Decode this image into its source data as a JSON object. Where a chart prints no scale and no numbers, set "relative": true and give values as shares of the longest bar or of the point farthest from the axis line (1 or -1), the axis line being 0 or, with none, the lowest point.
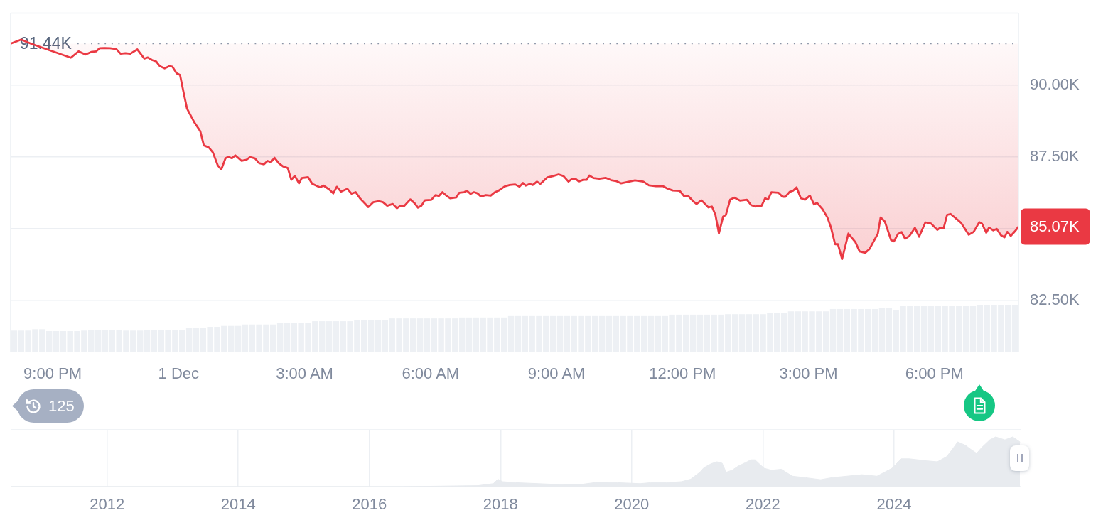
{
  "chart_data": [
    {
      "type": "line",
      "x": [
        "--11-30T20:00",
        "--11-30T20:15",
        "--11-30T20:29",
        "--11-30T20:52",
        "--11-30T21:26",
        "--11-30T21:37",
        "--11-30T21:47",
        "--11-30T21:55",
        "--11-30T22:02",
        "--11-30T22:07",
        "--11-30T22:14",
        "--11-30T22:22",
        "--11-30T22:31",
        "--11-30T22:37",
        "--11-30T22:44",
        "--11-30T22:51",
        "--11-30T23:01",
        "--11-30T23:11",
        "--11-30T23:16",
        "--11-30T23:22",
        "--11-30T23:28",
        "--11-30T23:33",
        "--11-30T23:40",
        "--11-30T23:47",
        "--11-30T23:51",
        "--11-30T23:57",
        "--12-01T00:02",
        "--12-01T00:07",
        "--12-01T00:12",
        "--12-01T00:22",
        "--12-01T00:31",
        "--12-01T00:36",
        "--12-01T00:43",
        "--12-01T00:49",
        "--12-01T00:56",
        "--12-01T01:01",
        "--12-01T01:07",
        "--12-01T01:11",
        "--12-01T01:16",
        "--12-01T01:21",
        "--12-01T01:30",
        "--12-01T01:37",
        "--12-01T01:42",
        "--12-01T01:49",
        "--12-01T01:55",
        "--12-01T02:02",
        "--12-01T02:07",
        "--12-01T02:12",
        "--12-01T02:17",
        "--12-01T02:23",
        "--12-01T02:29",
        "--12-01T02:36",
        "--12-01T02:41",
        "--12-01T02:46",
        "--12-01T02:52",
        "--12-01T02:56",
        "--12-01T03:05",
        "--12-01T03:11",
        "--12-01T03:22",
        "--12-01T03:27",
        "--12-01T03:35",
        "--12-01T03:41",
        "--12-01T03:46",
        "--12-01T03:52",
        "--12-01T04:01",
        "--12-01T04:07",
        "--12-01T04:13",
        "--12-01T04:19",
        "--12-01T04:31",
        "--12-01T04:38",
        "--12-01T04:46",
        "--12-01T04:52",
        "--12-01T04:58",
        "--12-01T05:06",
        "--12-01T05:12",
        "--12-01T05:17",
        "--12-01T05:22",
        "--12-01T05:31",
        "--12-01T05:37",
        "--12-01T05:42",
        "--12-01T05:47",
        "--12-01T05:52",
        "--12-01T06:01",
        "--12-01T06:07",
        "--12-01T06:12",
        "--12-01T06:17",
        "--12-01T06:23",
        "--12-01T06:28",
        "--12-01T06:37",
        "--12-01T06:41",
        "--12-01T06:48",
        "--12-01T06:52",
        "--12-01T06:57",
        "--12-01T07:02",
        "--12-01T07:07",
        "--12-01T07:12",
        "--12-01T07:19",
        "--12-01T07:26",
        "--12-01T07:32",
        "--12-01T07:37",
        "--12-01T07:46",
        "--12-01T07:53",
        "--12-01T08:01",
        "--12-01T08:07",
        "--12-01T08:12",
        "--12-01T08:16",
        "--12-01T08:22",
        "--12-01T08:26",
        "--12-01T08:32",
        "--12-01T08:37",
        "--12-01T08:47",
        "--12-01T08:55",
        "--12-01T09:03",
        "--12-01T09:10",
        "--12-01T09:17",
        "--12-01T09:22",
        "--12-01T09:28",
        "--12-01T09:32",
        "--12-01T09:38",
        "--12-01T09:43",
        "--12-01T09:47",
        "--12-01T09:53",
        "--12-01T10:01",
        "--12-01T10:10",
        "--12-01T10:18",
        "--12-01T10:25",
        "--12-01T10:32",
        "--12-01T10:44",
        "--12-01T10:52",
        "--12-01T11:04",
        "--12-01T11:12",
        "--12-01T11:22",
        "--12-01T11:32",
        "--12-01T11:38",
        "--12-01T11:46",
        "--12-01T11:56",
        "--12-01T12:02",
        "--12-01T12:08",
        "--12-01T12:15",
        "--12-01T12:20",
        "--12-01T12:27",
        "--12-01T12:37",
        "--12-01T12:42",
        "--12-01T12:47",
        "--12-01T12:52",
        "--12-01T12:58",
        "--12-01T13:02",
        "--12-01T13:08",
        "--12-01T13:14",
        "--12-01T13:22",
        "--12-01T13:32",
        "--12-01T13:38",
        "--12-01T13:44",
        "--12-01T13:53",
        "--12-01T13:58",
        "--12-01T14:02",
        "--12-01T14:07",
        "--12-01T14:17",
        "--12-01T14:23",
        "--12-01T14:27",
        "--12-01T14:33",
        "--12-01T14:38",
        "--12-01T14:43",
        "--12-01T14:49",
        "--12-01T14:55",
        "--12-01T15:02",
        "--12-01T15:08",
        "--12-01T15:12",
        "--12-01T15:20",
        "--12-01T15:27",
        "--12-01T15:32",
        "--12-01T15:38",
        "--12-01T15:42",
        "--12-01T15:48",
        "--12-01T15:57",
        "--12-01T16:07",
        "--12-01T16:13",
        "--12-01T16:21",
        "--12-01T16:27",
        "--12-01T16:39",
        "--12-01T16:43",
        "--12-01T16:49",
        "--12-01T16:58",
        "--12-01T17:02",
        "--12-01T17:08",
        "--12-01T17:13",
        "--12-01T17:18",
        "--12-01T17:24",
        "--12-01T17:32",
        "--12-01T17:38",
        "--12-01T17:47",
        "--12-01T17:55",
        "--12-01T18:04",
        "--12-01T18:08",
        "--12-01T18:13",
        "--12-01T18:18",
        "--12-01T18:23",
        "--12-01T18:33",
        "--12-01T18:38",
        "--12-01T18:49",
        "--12-01T18:56",
        "--12-01T19:04",
        "--12-01T19:08",
        "--12-01T19:14",
        "--12-01T19:18",
        "--12-01T19:24",
        "--12-01T19:29",
        "--12-01T19:35",
        "--12-01T19:40",
        "--12-01T19:44",
        "--12-01T19:49",
        "--12-01T19:55",
        "--12-01T20:00"
      ],
      "series": [
        {
          "color": "#ea3943",
          "values": [
            91440,
            91580,
            91440,
            91240,
            90950,
            91170,
            91060,
            91150,
            91170,
            91280,
            91290,
            91280,
            91250,
            91090,
            91110,
            91090,
            91240,
            90920,
            90960,
            90870,
            90820,
            90660,
            90580,
            90660,
            90640,
            90410,
            90350,
            89750,
            89180,
            88720,
            88390,
            87900,
            87830,
            87650,
            87200,
            87060,
            87450,
            87500,
            87450,
            87550,
            87360,
            87400,
            87490,
            87450,
            87280,
            87240,
            87360,
            87320,
            87470,
            87280,
            87170,
            87110,
            86700,
            86840,
            86580,
            86760,
            86790,
            86560,
            86440,
            86500,
            86370,
            86230,
            86460,
            86290,
            86390,
            86220,
            86270,
            86060,
            85750,
            85920,
            85960,
            85920,
            85800,
            85860,
            85710,
            85800,
            85780,
            86020,
            85890,
            85730,
            85800,
            85990,
            86000,
            86170,
            86140,
            86270,
            86140,
            86060,
            86090,
            86250,
            86270,
            86320,
            86210,
            86270,
            86230,
            86120,
            86170,
            86150,
            86270,
            86320,
            86470,
            86520,
            86540,
            86460,
            86590,
            86500,
            86560,
            86520,
            86640,
            86560,
            86790,
            86830,
            86890,
            86830,
            86640,
            86730,
            86720,
            86640,
            86700,
            86700,
            86850,
            86760,
            86740,
            86770,
            86690,
            86660,
            86580,
            86640,
            86680,
            86640,
            86510,
            86480,
            86480,
            86400,
            86330,
            86320,
            86140,
            86140,
            85960,
            85860,
            85990,
            85740,
            85770,
            85480,
            84840,
            85420,
            85480,
            86010,
            86080,
            85980,
            86010,
            85820,
            85770,
            85800,
            86060,
            86010,
            86270,
            86250,
            86110,
            86110,
            86280,
            86320,
            86440,
            86060,
            86010,
            86150,
            85840,
            85900,
            85680,
            85390,
            85050,
            84460,
            84460,
            83940,
            84830,
            84530,
            84210,
            84160,
            84290,
            84820,
            85390,
            85250,
            84600,
            84560,
            84820,
            84880,
            84650,
            84740,
            85030,
            84720,
            85220,
            85180,
            84960,
            85030,
            85010,
            85480,
            85510,
            85310,
            85200,
            84790,
            84890,
            85230,
            85170,
            84860,
            85040,
            84940,
            84990,
            84770,
            84700,
            84890,
            84750,
            84910,
            85070
          ],
          "lower": [
            91440,
            91440,
            91440,
            91240,
            90950,
            91170,
            91060,
            91150,
            91170,
            91280,
            91290,
            91280,
            91250,
            91090,
            91110,
            91090,
            91240,
            90920,
            90960,
            90870,
            90820,
            90660,
            90580,
            90660,
            90640,
            90410,
            90350,
            89750,
            89180,
            88720,
            88390,
            87900,
            87830,
            87650,
            87200,
            87060,
            87450,
            87500,
            87450,
            87550,
            87360,
            87400,
            87490,
            87450,
            87280,
            87240,
            87360,
            87320,
            87470,
            87280,
            87170,
            87110,
            86700,
            86840,
            86580,
            86760,
            86790,
            86560,
            86440,
            86500,
            86370,
            86230,
            86460,
            86290,
            86390,
            86220,
            86270,
            86060,
            85750,
            85920,
            85960,
            85920,
            85800,
            85860,
            85710,
            85800,
            85780,
            86020,
            85890,
            85730,
            85800,
            85990,
            86000,
            86170,
            86140,
            86270,
            86140,
            86060,
            86090,
            86250,
            86270,
            86320,
            86210,
            86270,
            86230,
            86120,
            86170,
            86150,
            86270,
            86320,
            86470,
            86520,
            86540,
            86460,
            86590,
            86500,
            86560,
            86520,
            86640,
            86560,
            86790,
            86830,
            86890,
            86830,
            86640,
            86730,
            86720,
            86640,
            86700,
            86700,
            86850,
            86760,
            86740,
            86770,
            86690,
            86660,
            86580,
            86640,
            86680,
            86640,
            86510,
            86480,
            86480,
            86400,
            86330,
            86320,
            86140,
            86140,
            85960,
            85860,
            85990,
            85740,
            85770,
            85480,
            84840,
            85420,
            85480,
            86010,
            86080,
            85980,
            86010,
            85820,
            85770,
            85800,
            86060,
            86010,
            86270,
            86250,
            86110,
            86110,
            86280,
            86320,
            86440,
            86060,
            86010,
            86150,
            85840,
            85900,
            85680,
            85390,
            85050,
            84460,
            84460,
            83940,
            84830,
            84530,
            84210,
            84160,
            84290,
            84820,
            85390,
            85250,
            84600,
            84560,
            84820,
            84880,
            84650,
            84740,
            85030,
            84720,
            85220,
            85180,
            84960,
            85030,
            85010,
            85480,
            85510,
            85310,
            85200,
            84790,
            84890,
            85230,
            85170,
            84860,
            85040,
            84940,
            84990,
            84770,
            84700,
            84890,
            84750,
            84910,
            85070
          ],
          "upper": [
            91440,
            91580,
            91440,
            91440,
            91440,
            91440,
            91440,
            91440,
            91440,
            91440,
            91440,
            91440,
            91440,
            91440,
            91440,
            91440,
            91440,
            91440,
            91440,
            91440,
            91440,
            91440,
            91440,
            91440,
            91440,
            91440,
            91440,
            91440,
            91440,
            91440,
            91440,
            91440,
            91440,
            91440,
            91440,
            91440,
            91440,
            91440,
            91440,
            91440,
            91440,
            91440,
            91440,
            91440,
            91440,
            91440,
            91440,
            91440,
            91440,
            91440,
            91440,
            91440,
            91440,
            91440,
            91440,
            91440,
            91440,
            91440,
            91440,
            91440,
            91440,
            91440,
            91440,
            91440,
            91440,
            91440,
            91440,
            91440,
            91440,
            91440,
            91440,
            91440,
            91440,
            91440,
            91440,
            91440,
            91440,
            91440,
            91440,
            91440,
            91440,
            91440,
            91440,
            91440,
            91440,
            91440,
            91440,
            91440,
            91440,
            91440,
            91440,
            91440,
            91440,
            91440,
            91440,
            91440,
            91440,
            91440,
            91440,
            91440,
            91440,
            91440,
            91440,
            91440,
            91440,
            91440,
            91440,
            91440,
            91440,
            91440,
            91440,
            91440,
            91440,
            91440,
            91440,
            91440,
            91440,
            91440,
            91440,
            91440,
            91440,
            91440,
            91440,
            91440,
            91440,
            91440,
            91440,
            91440,
            91440,
            91440,
            91440,
            91440,
            91440,
            91440,
            91440,
            91440,
            91440,
            91440,
            91440,
            91440,
            91440,
            91440,
            91440,
            91440,
            91440,
            91440,
            91440,
            91440,
            91440,
            91440,
            91440,
            91440,
            91440,
            91440,
            91440,
            91440,
            91440,
            91440,
            91440,
            91440,
            91440,
            91440,
            91440,
            91440,
            91440,
            91440,
            91440,
            91440,
            91440,
            91440,
            91440,
            91440,
            91440,
            91440,
            91440,
            91440,
            91440,
            91440,
            91440,
            91440,
            91440,
            91440,
            91440,
            91440,
            91440,
            91440,
            91440,
            91440,
            91440,
            91440,
            91440,
            91440,
            91440,
            91440,
            91440,
            91440,
            91440,
            91440,
            91440,
            91440,
            91440,
            91440,
            91440,
            91440,
            91440,
            91440,
            91440,
            91440,
            91440,
            91440,
            91440,
            91440,
            91440
          ]
        }
      ],
      "xlim": [
        "--11-30T20:00",
        "--12-01T20:00"
      ],
      "xticks": [
        {
          "value": "--11-30T21:00",
          "label": "9:00 PM"
        },
        {
          "value": "--12-01T00:00",
          "label": "1 Dec"
        },
        {
          "value": "--12-01T03:00",
          "label": "3:00 AM"
        },
        {
          "value": "--12-01T06:00",
          "label": "6:00 AM"
        },
        {
          "value": "--12-01T09:00",
          "label": "9:00 AM"
        },
        {
          "value": "--12-01T12:00",
          "label": "12:00 PM"
        },
        {
          "value": "--12-01T15:00",
          "label": "3:00 PM"
        },
        {
          "value": "--12-01T18:00",
          "label": "6:00 PM"
        }
      ],
      "ylim": [
        82500,
        92500
      ],
      "yticks": [
        {
          "value": 82500,
          "label": "82.50K"
        },
        {
          "value": 85000,
          "label": null
        },
        {
          "value": 87500,
          "label": "87.50K"
        },
        {
          "value": 90000,
          "label": "90.00K"
        }
      ],
      "grid": "y",
      "ref_lines": [
        {
          "axis": "y",
          "value": 91440,
          "label": "91.44K",
          "line_style": "dotted",
          "color": "#8a94a6"
        }
      ],
      "annotations": [
        "125",
        {
          "text": "85.07K",
          "x": "--12-01T20:00",
          "y": 85070
        }
      ]
    },
    {
      "type": "bar",
      "relative": true,
      "categories": [
        null,
        null,
        null,
        null,
        null,
        null,
        null,
        null,
        null,
        null,
        null,
        null,
        null,
        null,
        null,
        null,
        null,
        null,
        null,
        null,
        null,
        null,
        null,
        null,
        null,
        null,
        null,
        null,
        null,
        null,
        null,
        null,
        null,
        null,
        null,
        null,
        null,
        null,
        null,
        null,
        null,
        null,
        null,
        null,
        null,
        null,
        null,
        null,
        null,
        null,
        null,
        null,
        null,
        null,
        null,
        null,
        null,
        null,
        null,
        null,
        null,
        null,
        null,
        null,
        null,
        null,
        null,
        null,
        null,
        null,
        null,
        null,
        null,
        null,
        null,
        null,
        null,
        null,
        null,
        null,
        null,
        null,
        null,
        null,
        null,
        null,
        null,
        null,
        null,
        null,
        null,
        null,
        null,
        null,
        null,
        null,
        null,
        null,
        null,
        null,
        null,
        null,
        null,
        null,
        null,
        null,
        null,
        null,
        null,
        null,
        null,
        null,
        null,
        null,
        null,
        null,
        null,
        null,
        null,
        null,
        null,
        null,
        null,
        null,
        null,
        null,
        null,
        null,
        null,
        null,
        null,
        null,
        null,
        null,
        null,
        null,
        null,
        null,
        null,
        null,
        null,
        null,
        null,
        null
      ],
      "values": [
        0.45,
        0.45,
        0.45,
        0.48,
        0.48,
        0.44,
        0.44,
        0.44,
        0.44,
        0.44,
        0.45,
        0.47,
        0.47,
        0.47,
        0.47,
        0.47,
        0.45,
        0.45,
        0.45,
        0.47,
        0.47,
        0.47,
        0.47,
        0.47,
        0.47,
        0.5,
        0.5,
        0.5,
        0.53,
        0.53,
        0.55,
        0.55,
        0.55,
        0.58,
        0.58,
        0.58,
        0.58,
        0.58,
        0.61,
        0.61,
        0.61,
        0.61,
        0.61,
        0.65,
        0.65,
        0.65,
        0.65,
        0.65,
        0.65,
        0.68,
        0.68,
        0.68,
        0.68,
        0.68,
        0.71,
        0.71,
        0.71,
        0.71,
        0.71,
        0.71,
        0.71,
        0.71,
        0.71,
        0.71,
        0.73,
        0.73,
        0.73,
        0.73,
        0.73,
        0.73,
        0.73,
        0.76,
        0.76,
        0.76,
        0.76,
        0.76,
        0.76,
        0.76,
        0.76,
        0.76,
        0.76,
        0.76,
        0.76,
        0.76,
        0.76,
        0.76,
        0.76,
        0.76,
        0.76,
        0.76,
        0.76,
        0.76,
        0.76,
        0.76,
        0.79,
        0.79,
        0.79,
        0.79,
        0.79,
        0.79,
        0.79,
        0.79,
        0.8,
        0.8,
        0.8,
        0.8,
        0.8,
        0.8,
        0.83,
        0.83,
        0.83,
        0.86,
        0.86,
        0.86,
        0.86,
        0.86,
        0.86,
        0.91,
        0.91,
        0.91,
        0.91,
        0.91,
        0.91,
        0.91,
        0.93,
        0.93,
        0.88,
        0.97,
        0.97,
        0.97,
        0.97,
        0.97,
        0.97,
        0.97,
        0.97,
        0.97,
        0.97,
        0.97,
        1,
        1,
        1,
        1,
        1,
        1
      ],
      "color": "#edf0f4"
    },
    {
      "type": "area",
      "relative": true,
      "x": [
        2010.53,
        2016.5,
        2017.08,
        2017.66,
        2017.89,
        2017.96,
        2018.03,
        2018.23,
        2018.58,
        2018.92,
        2019.26,
        2019.49,
        2019.78,
        2020.13,
        2020.29,
        2020.53,
        2020.76,
        2020.9,
        2021.04,
        2021.1,
        2021.21,
        2021.3,
        2021.38,
        2021.44,
        2021.53,
        2021.62,
        2021.73,
        2021.82,
        2021.88,
        2021.96,
        2022.02,
        2022.13,
        2022.28,
        2022.45,
        2022.65,
        2022.88,
        2023.05,
        2023.28,
        2023.51,
        2023.74,
        2023.97,
        2024.11,
        2024.23,
        2024.49,
        2024.66,
        2024.8,
        2024.89,
        2024.97,
        2025.09,
        2025.17,
        2025.26,
        2025.34,
        2025.46,
        2025.55,
        2025.69,
        2025.81,
        2025.92
      ],
      "values": [
        0,
        0,
        0.01,
        0.02,
        0.06,
        0.15,
        0.1,
        0.08,
        0.06,
        0.04,
        0.05,
        0.09,
        0.08,
        0.06,
        0.08,
        0.08,
        0.1,
        0.15,
        0.29,
        0.38,
        0.46,
        0.5,
        0.47,
        0.29,
        0.33,
        0.41,
        0.48,
        0.54,
        0.54,
        0.44,
        0.37,
        0.33,
        0.35,
        0.21,
        0.18,
        0.14,
        0.18,
        0.21,
        0.24,
        0.21,
        0.37,
        0.56,
        0.56,
        0.52,
        0.5,
        0.6,
        0.75,
        0.9,
        0.83,
        0.75,
        0.67,
        0.79,
        0.94,
        1,
        0.94,
        1,
        0.9
      ],
      "color": "#e8ebef",
      "xlim": [
        2010.53,
        2025.93
      ],
      "xticks": [
        2012,
        2014,
        2016,
        2018,
        2020,
        2022,
        2024
      ],
      "grid": "x"
    }
  ]
}
